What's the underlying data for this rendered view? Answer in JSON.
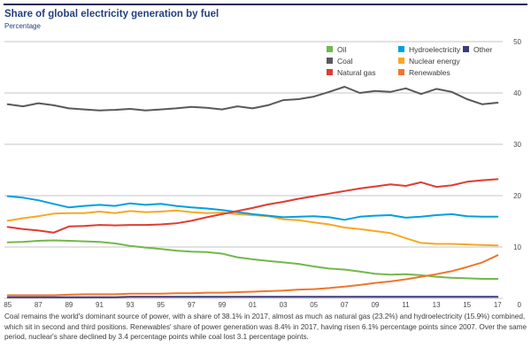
{
  "header": {
    "title": "Share of global electricity generation by fuel",
    "subtitle": "Percentage"
  },
  "legend": {
    "columns": [
      {
        "items": [
          {
            "label": "Oil",
            "color": "#74b74a"
          },
          {
            "label": "Coal",
            "color": "#58595b"
          },
          {
            "label": "Natural gas",
            "color": "#e03c31"
          }
        ]
      },
      {
        "items": [
          {
            "label": "Hydroelectricity",
            "color": "#00a0dd"
          },
          {
            "label": "Nuclear energy",
            "color": "#f7a823"
          },
          {
            "label": "Renewables",
            "color": "#f0762b"
          }
        ]
      },
      {
        "items": [
          {
            "label": "Other",
            "color": "#3d3a80"
          }
        ]
      }
    ]
  },
  "chart_data": {
    "type": "line",
    "title": "Share of global electricity generation by fuel",
    "ylabel": "Percentage",
    "x": [
      1985,
      1986,
      1987,
      1988,
      1989,
      1990,
      1991,
      1992,
      1993,
      1994,
      1995,
      1996,
      1997,
      1998,
      1999,
      2000,
      2001,
      2002,
      2003,
      2004,
      2005,
      2006,
      2007,
      2008,
      2009,
      2010,
      2011,
      2012,
      2013,
      2014,
      2015,
      2016,
      2017
    ],
    "x_tick_labels": [
      "85",
      "87",
      "89",
      "91",
      "93",
      "95",
      "97",
      "99",
      "01",
      "03",
      "05",
      "07",
      "09",
      "11",
      "13",
      "15",
      "17"
    ],
    "yticks": [
      0,
      10,
      20,
      30,
      40,
      50
    ],
    "ylim": [
      0,
      50
    ],
    "grid": "horizontal",
    "grid_color": "#c6c6c6",
    "legend_position": "top-right",
    "y_axis_labels_position": "right",
    "draw_order": [
      "Coal",
      "Nuclear energy",
      "Hydroelectricity",
      "Oil",
      "Other",
      "Renewables",
      "Natural gas"
    ],
    "series": [
      {
        "name": "Oil",
        "color": "#74b74a",
        "values": [
          10.9,
          11.0,
          11.2,
          11.3,
          11.2,
          11.1,
          11.0,
          10.7,
          10.2,
          9.9,
          9.6,
          9.3,
          9.1,
          9.0,
          8.7,
          8.0,
          7.6,
          7.3,
          7.0,
          6.7,
          6.2,
          5.8,
          5.6,
          5.2,
          4.8,
          4.6,
          4.7,
          4.5,
          4.2,
          4.0,
          3.9,
          3.8,
          3.8
        ]
      },
      {
        "name": "Coal",
        "color": "#58595b",
        "values": [
          37.8,
          37.4,
          38.0,
          37.6,
          37.0,
          36.8,
          36.6,
          36.7,
          36.9,
          36.6,
          36.8,
          37.0,
          37.3,
          37.1,
          36.8,
          37.4,
          37.0,
          37.6,
          38.6,
          38.8,
          39.3,
          40.2,
          41.2,
          40.0,
          40.4,
          40.2,
          40.9,
          39.8,
          40.8,
          40.2,
          38.8,
          37.8,
          38.1
        ]
      },
      {
        "name": "Natural gas",
        "color": "#e03c31",
        "values": [
          13.9,
          13.5,
          13.2,
          12.8,
          14.0,
          14.1,
          14.3,
          14.2,
          14.3,
          14.3,
          14.4,
          14.6,
          15.1,
          15.8,
          16.4,
          17.0,
          17.6,
          18.3,
          18.8,
          19.4,
          19.9,
          20.4,
          20.9,
          21.4,
          21.8,
          22.2,
          21.9,
          22.6,
          21.7,
          22.0,
          22.7,
          23.0,
          23.2
        ]
      },
      {
        "name": "Hydroelectricity",
        "color": "#00a0dd",
        "values": [
          19.9,
          19.6,
          19.1,
          18.4,
          17.7,
          18.0,
          18.2,
          18.0,
          18.5,
          18.2,
          18.4,
          18.0,
          17.7,
          17.5,
          17.2,
          16.8,
          16.4,
          16.1,
          15.8,
          15.9,
          16.0,
          15.8,
          15.3,
          15.9,
          16.1,
          16.2,
          15.7,
          15.9,
          16.2,
          16.4,
          16.0,
          15.9,
          15.9
        ]
      },
      {
        "name": "Nuclear energy",
        "color": "#f7a823",
        "values": [
          15.1,
          15.6,
          16.0,
          16.5,
          16.6,
          16.6,
          16.9,
          16.6,
          17.0,
          16.8,
          16.9,
          17.1,
          16.8,
          16.6,
          16.7,
          16.4,
          16.2,
          16.0,
          15.4,
          15.2,
          14.8,
          14.4,
          13.8,
          13.5,
          13.1,
          12.7,
          11.7,
          10.8,
          10.6,
          10.6,
          10.5,
          10.4,
          10.3
        ]
      },
      {
        "name": "Renewables",
        "color": "#f0762b",
        "values": [
          0.6,
          0.6,
          0.6,
          0.6,
          0.7,
          0.8,
          0.8,
          0.8,
          0.9,
          0.9,
          0.9,
          1.0,
          1.0,
          1.1,
          1.1,
          1.2,
          1.3,
          1.4,
          1.5,
          1.7,
          1.8,
          2.0,
          2.3,
          2.6,
          3.0,
          3.3,
          3.7,
          4.2,
          4.7,
          5.3,
          6.1,
          7.0,
          8.4
        ]
      },
      {
        "name": "Other",
        "color": "#3d3a80",
        "values": [
          0.2,
          0.2,
          0.2,
          0.2,
          0.2,
          0.2,
          0.2,
          0.2,
          0.3,
          0.3,
          0.3,
          0.3,
          0.3,
          0.3,
          0.3,
          0.3,
          0.3,
          0.3,
          0.3,
          0.3,
          0.3,
          0.3,
          0.3,
          0.3,
          0.3,
          0.3,
          0.3,
          0.3,
          0.3,
          0.3,
          0.3,
          0.3,
          0.3
        ]
      }
    ]
  },
  "caption": {
    "text": "Coal remains the world's dominant source of power, with a share of 38.1% in 2017, almost as much as natural gas (23.2%) and hydroelectricity (15.9%) combined, which sit in second and third positions. Renewables' share of power generation was 8.4% in 2017, having risen 6.1% percentage points since 2007. Over the same period, nuclear's share declined by 3.4 percentage points while coal lost 3.1 percentage points."
  }
}
